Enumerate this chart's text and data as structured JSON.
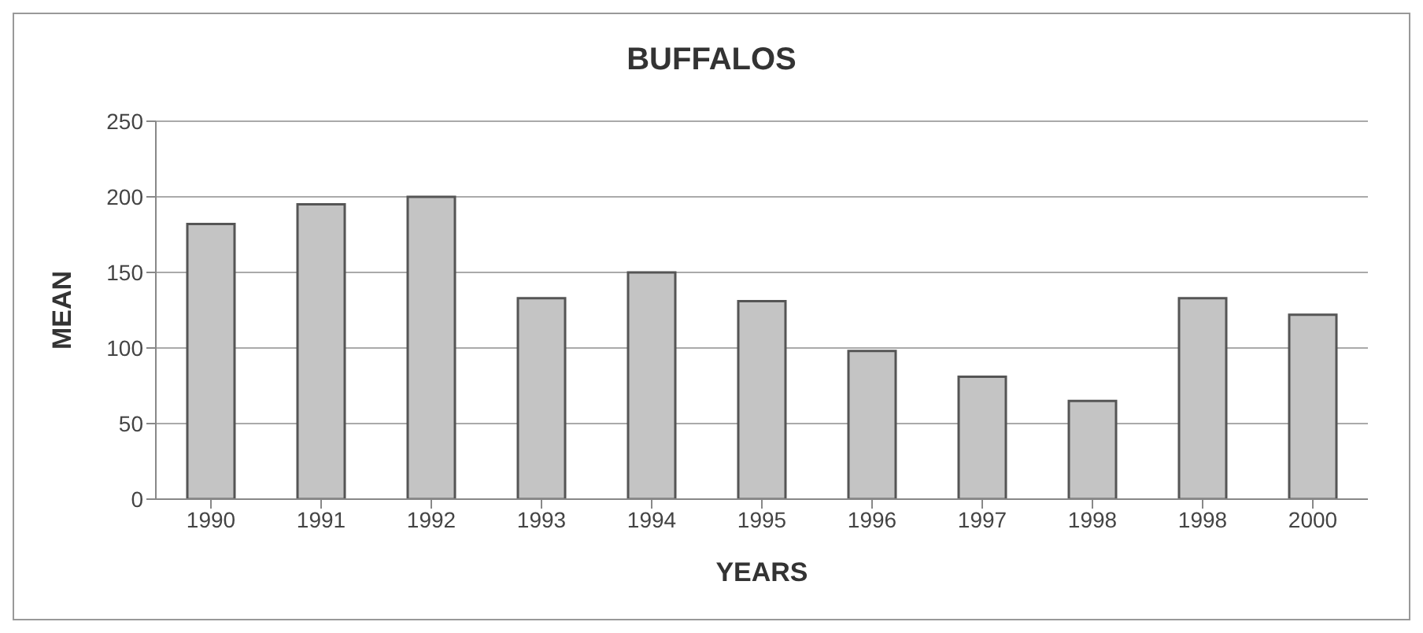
{
  "chart_data": {
    "type": "bar",
    "title": "BUFFALOS",
    "xlabel": "YEARS",
    "ylabel": "MEAN",
    "categories": [
      "1990",
      "1991",
      "1992",
      "1993",
      "1994",
      "1995",
      "1996",
      "1997",
      "1998",
      "1998",
      "2000"
    ],
    "values": [
      182,
      195,
      200,
      133,
      150,
      131,
      98,
      81,
      65,
      133,
      122
    ],
    "color": "#c4c4c4",
    "ylim": [
      0,
      250
    ],
    "yticks": [
      0,
      50,
      100,
      150,
      200,
      250
    ],
    "grid": "y"
  }
}
